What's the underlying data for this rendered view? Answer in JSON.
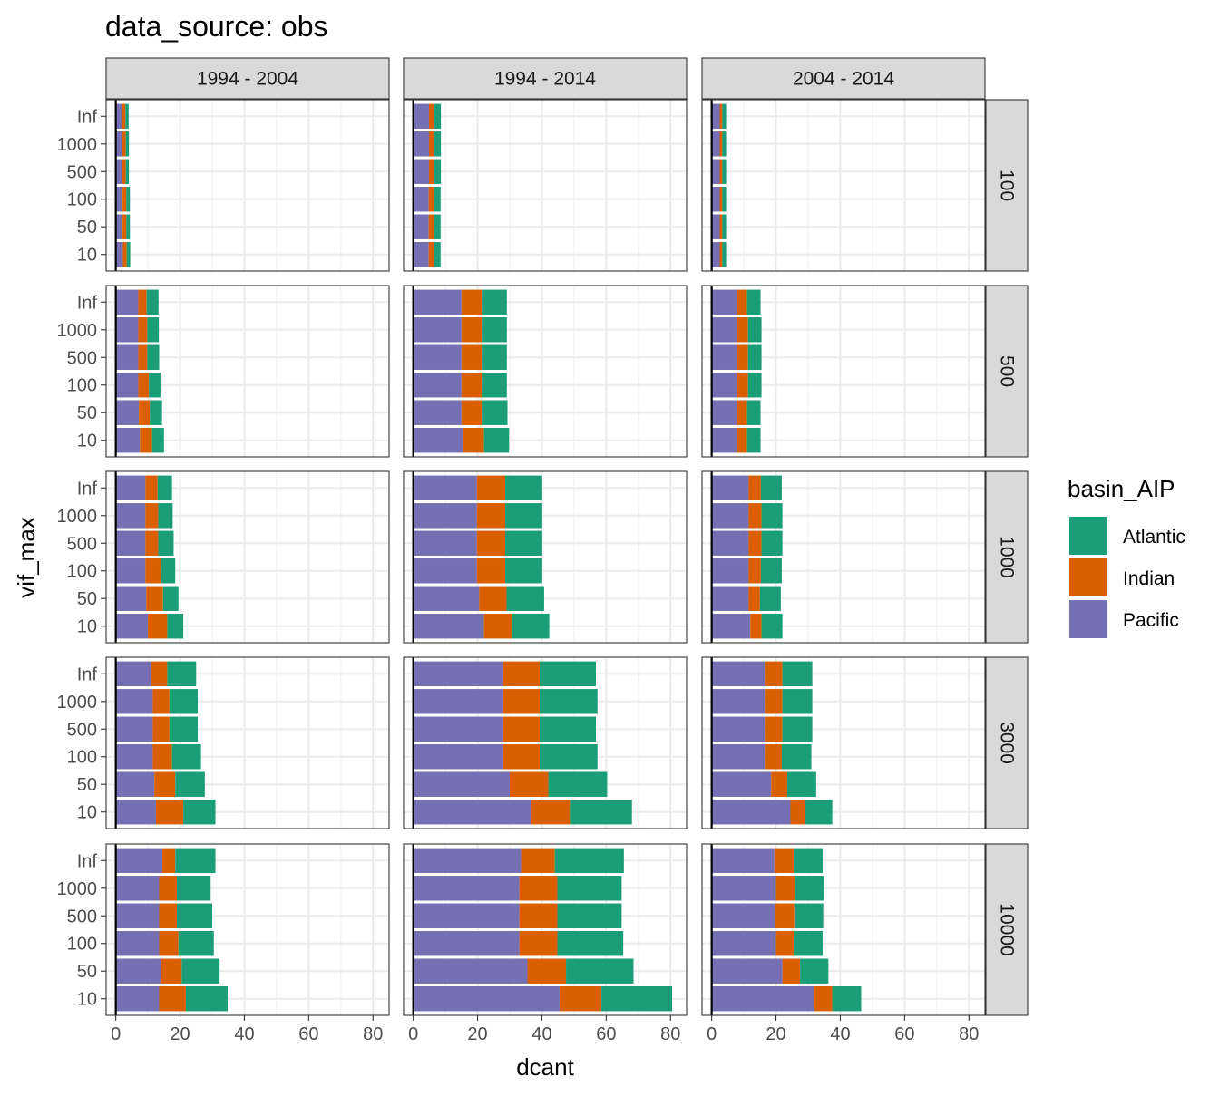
{
  "chart_data": {
    "type": "bar",
    "orientation": "horizontal",
    "stacked": true,
    "title": "data_source: obs",
    "xlabel": "dcant",
    "ylabel": "vif_max",
    "xlim": [
      -3,
      85
    ],
    "x_ticks": [
      0,
      20,
      40,
      60,
      80
    ],
    "x_tick_labels": [
      "0",
      "20",
      "40",
      "60",
      "80"
    ],
    "categories": [
      "10",
      "50",
      "100",
      "500",
      "1000",
      "Inf"
    ],
    "column_facets": [
      "1994 - 2004",
      "1994 - 2014",
      "2004 - 2014"
    ],
    "row_facets": [
      "100",
      "500",
      "1000",
      "3000",
      "10000"
    ],
    "legend": {
      "title": "basin_AIP",
      "position": "right",
      "entries": [
        {
          "name": "Atlantic",
          "color": "#1b9e77"
        },
        {
          "name": "Indian",
          "color": "#d95f02"
        },
        {
          "name": "Pacific",
          "color": "#7570b3"
        }
      ]
    },
    "stack_order": [
      "Pacific",
      "Indian",
      "Atlantic"
    ],
    "grid": true,
    "panels": [
      {
        "row": "100",
        "col": "1994 - 2004",
        "series": {
          "Pacific": [
            2.2,
            2.1,
            2.1,
            2.0,
            2.0,
            1.9
          ],
          "Indian": [
            1.2,
            1.2,
            1.2,
            1.1,
            1.1,
            1.1
          ],
          "Atlantic": [
            1.1,
            1.1,
            1.1,
            1.0,
            1.0,
            1.0
          ]
        }
      },
      {
        "row": "100",
        "col": "1994 - 2014",
        "series": {
          "Pacific": [
            4.8,
            4.8,
            4.8,
            4.9,
            4.9,
            4.9
          ],
          "Indian": [
            1.7,
            1.7,
            1.7,
            1.7,
            1.7,
            1.7
          ],
          "Atlantic": [
            2.0,
            2.0,
            2.0,
            2.0,
            2.0,
            2.0
          ]
        }
      },
      {
        "row": "100",
        "col": "2004 - 2014",
        "series": {
          "Pacific": [
            2.5,
            2.5,
            2.5,
            2.5,
            2.5,
            2.5
          ],
          "Indian": [
            0.8,
            0.8,
            0.8,
            0.8,
            0.8,
            0.8
          ],
          "Atlantic": [
            1.2,
            1.2,
            1.2,
            1.2,
            1.2,
            1.2
          ]
        }
      },
      {
        "row": "500",
        "col": "1994 - 2004",
        "series": {
          "Pacific": [
            7.5,
            7.2,
            7.0,
            7.0,
            7.0,
            7.0
          ],
          "Indian": [
            3.8,
            3.4,
            3.3,
            2.8,
            2.8,
            2.6
          ],
          "Atlantic": [
            3.7,
            3.8,
            3.6,
            3.7,
            3.6,
            3.7
          ]
        }
      },
      {
        "row": "500",
        "col": "1994 - 2014",
        "series": {
          "Pacific": [
            15.5,
            15.0,
            15.0,
            15.0,
            15.0,
            15.0
          ],
          "Indian": [
            6.5,
            6.3,
            6.3,
            6.3,
            6.3,
            6.3
          ],
          "Atlantic": [
            7.8,
            8.0,
            7.8,
            7.8,
            7.8,
            7.8
          ]
        }
      },
      {
        "row": "500",
        "col": "2004 - 2014",
        "series": {
          "Pacific": [
            8.0,
            8.0,
            8.0,
            8.0,
            8.0,
            8.0
          ],
          "Indian": [
            3.0,
            3.0,
            3.3,
            3.3,
            3.3,
            3.0
          ],
          "Atlantic": [
            4.2,
            4.2,
            4.2,
            4.2,
            4.2,
            4.2
          ]
        }
      },
      {
        "row": "1000",
        "col": "1994 - 2004",
        "series": {
          "Pacific": [
            10.0,
            9.5,
            9.2,
            9.2,
            9.2,
            9.2
          ],
          "Indian": [
            6.0,
            5.2,
            4.8,
            4.0,
            4.0,
            3.8
          ],
          "Atlantic": [
            5.0,
            4.8,
            4.5,
            4.8,
            4.5,
            4.5
          ]
        }
      },
      {
        "row": "1000",
        "col": "1994 - 2014",
        "series": {
          "Pacific": [
            22.0,
            20.5,
            19.8,
            19.8,
            19.8,
            19.8
          ],
          "Indian": [
            8.8,
            8.5,
            8.8,
            8.8,
            8.8,
            8.8
          ],
          "Atlantic": [
            11.5,
            11.7,
            11.5,
            11.5,
            11.5,
            11.5
          ]
        }
      },
      {
        "row": "1000",
        "col": "2004 - 2014",
        "series": {
          "Pacific": [
            12.0,
            11.5,
            11.5,
            11.5,
            11.5,
            11.5
          ],
          "Indian": [
            3.5,
            3.5,
            3.8,
            4.0,
            4.0,
            3.8
          ],
          "Atlantic": [
            6.5,
            6.5,
            6.5,
            6.5,
            6.5,
            6.5
          ]
        }
      },
      {
        "row": "3000",
        "col": "1994 - 2004",
        "series": {
          "Pacific": [
            12.5,
            12.0,
            11.5,
            11.5,
            11.5,
            11.0
          ],
          "Indian": [
            8.5,
            6.5,
            6.0,
            5.2,
            5.2,
            5.0
          ],
          "Atlantic": [
            10.0,
            9.2,
            9.0,
            8.8,
            8.8,
            9.0
          ]
        }
      },
      {
        "row": "3000",
        "col": "1994 - 2014",
        "series": {
          "Pacific": [
            36.5,
            30.0,
            28.0,
            28.0,
            28.0,
            28.0
          ],
          "Indian": [
            12.5,
            12.0,
            11.3,
            11.3,
            11.3,
            11.3
          ],
          "Atlantic": [
            19.0,
            18.3,
            18.0,
            17.5,
            18.0,
            17.5
          ]
        }
      },
      {
        "row": "3000",
        "col": "2004 - 2014",
        "series": {
          "Pacific": [
            24.5,
            18.5,
            16.5,
            16.5,
            16.5,
            16.5
          ],
          "Indian": [
            4.5,
            5.0,
            5.3,
            5.5,
            5.5,
            5.5
          ],
          "Atlantic": [
            8.5,
            9.0,
            9.2,
            9.3,
            9.3,
            9.3
          ]
        }
      },
      {
        "row": "10000",
        "col": "1994 - 2004",
        "series": {
          "Pacific": [
            13.5,
            14.0,
            13.5,
            13.5,
            13.5,
            14.5
          ],
          "Indian": [
            8.3,
            6.5,
            6.0,
            5.5,
            5.5,
            4.0
          ],
          "Atlantic": [
            13.0,
            11.8,
            11.0,
            11.0,
            10.5,
            12.5
          ]
        }
      },
      {
        "row": "10000",
        "col": "1994 - 2014",
        "series": {
          "Pacific": [
            45.5,
            35.5,
            33.0,
            33.0,
            33.0,
            33.5
          ],
          "Indian": [
            13.0,
            12.0,
            11.8,
            11.8,
            11.8,
            10.5
          ],
          "Atlantic": [
            22.0,
            21.0,
            20.5,
            20.0,
            20.0,
            21.5
          ]
        }
      },
      {
        "row": "10000",
        "col": "2004 - 2014",
        "series": {
          "Pacific": [
            32.0,
            22.0,
            20.0,
            19.7,
            20.0,
            19.5
          ],
          "Indian": [
            5.5,
            5.5,
            5.5,
            6.0,
            6.0,
            6.0
          ],
          "Atlantic": [
            9.0,
            8.8,
            9.0,
            9.0,
            9.0,
            9.0
          ]
        }
      }
    ]
  }
}
